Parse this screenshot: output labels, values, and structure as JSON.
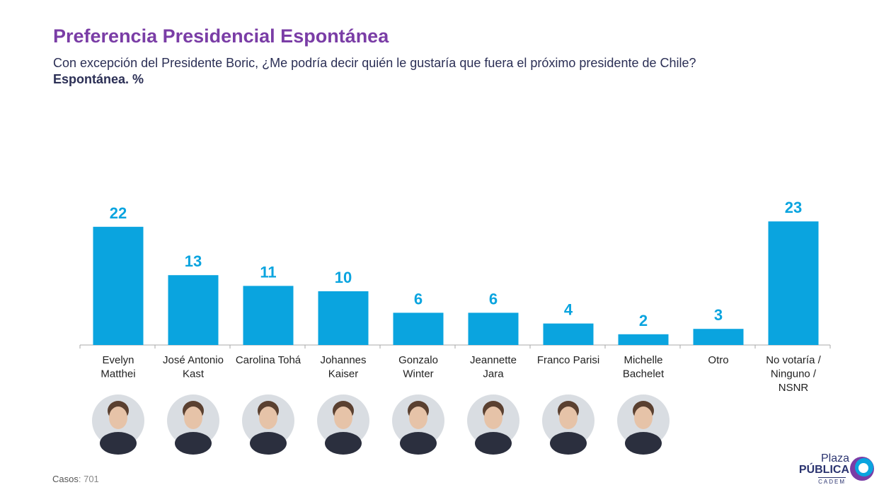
{
  "header": {
    "title": "Preferencia Presidencial Espontánea",
    "subtitle": "Con excepción del Presidente Boric, ¿Me podría decir quién le gustaría que fuera el próximo presidente de Chile?",
    "unit": "Espontánea. %"
  },
  "chart_data": {
    "type": "bar",
    "title": "Preferencia Presidencial Espontánea",
    "categories": [
      [
        "Evelyn",
        "Matthei"
      ],
      [
        "José Antonio",
        "Kast"
      ],
      [
        "Carolina Tohá"
      ],
      [
        "Johannes",
        "Kaiser"
      ],
      [
        "Gonzalo",
        "Winter"
      ],
      [
        "Jeannette",
        "Jara"
      ],
      [
        "Franco Parisi"
      ],
      [
        "Michelle",
        "Bachelet"
      ],
      [
        "Otro"
      ],
      [
        "No votaría /",
        "Ninguno /",
        "NSNR"
      ]
    ],
    "values": [
      22,
      13,
      11,
      10,
      6,
      6,
      4,
      2,
      3,
      23
    ],
    "has_photo": [
      true,
      true,
      true,
      true,
      true,
      true,
      true,
      true,
      false,
      false
    ],
    "xlabel": "",
    "ylabel": "",
    "grid": false,
    "bar_color": "#0aa4df"
  },
  "footer": {
    "cases_label": "Casos",
    "cases_value": ": 701"
  },
  "logo": {
    "line1": "Plaza",
    "line2": "PÚBLICA",
    "line3": "CADEM"
  },
  "colors": {
    "title": "#7a3da6",
    "text": "#2b2f55",
    "bar": "#0aa4df"
  }
}
